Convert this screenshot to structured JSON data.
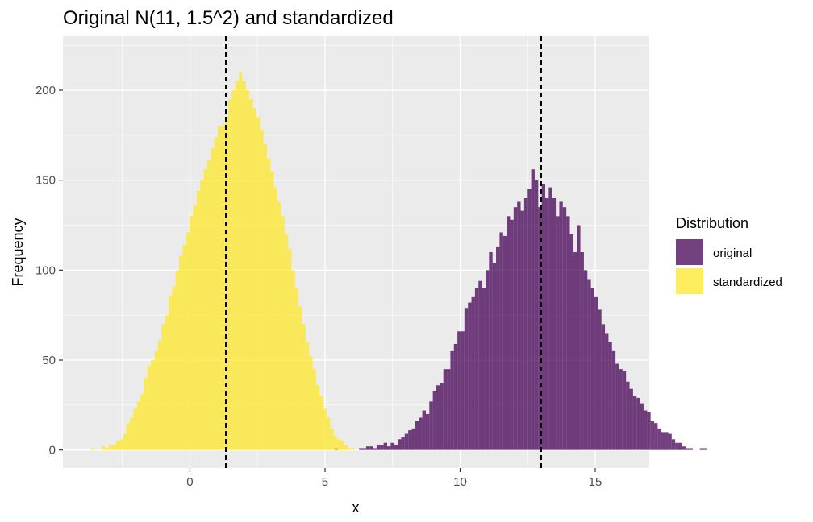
{
  "chart_data": {
    "type": "histogram",
    "title": "Original N(11, 1.5^2) and standardized",
    "xlabel": "x",
    "ylabel": "Frequency",
    "xlim": [
      -4.7,
      17.0
    ],
    "ylim": [
      -10,
      230
    ],
    "x_ticks": [
      0,
      5,
      10,
      15
    ],
    "y_ticks": [
      0,
      50,
      100,
      150,
      200
    ],
    "grid": true,
    "bin_width": 0.13,
    "vlines": [
      1.33,
      13.0
    ],
    "vline_style": "dashed",
    "legend": {
      "title": "Distribution",
      "position": "right"
    },
    "series": [
      {
        "name": "original",
        "color": "#440154",
        "opacity": 0.75,
        "start": 5.35,
        "counts": [
          1,
          0,
          0,
          0,
          0,
          0,
          0,
          1,
          1,
          2,
          2,
          1,
          3,
          3,
          4,
          2,
          4,
          3,
          6,
          7,
          9,
          11,
          12,
          16,
          18,
          22,
          20,
          27,
          33,
          36,
          37,
          45,
          45,
          55,
          59,
          66,
          66,
          79,
          82,
          85,
          90,
          94,
          90,
          100,
          110,
          104,
          113,
          121,
          119,
          130,
          128,
          135,
          138,
          133,
          140,
          145,
          156,
          150,
          135,
          148,
          140,
          146,
          140,
          130,
          138,
          135,
          130,
          120,
          110,
          125,
          110,
          100,
          95,
          90,
          85,
          78,
          70,
          65,
          60,
          55,
          48,
          45,
          44,
          38,
          34,
          30,
          29,
          26,
          22,
          21,
          16,
          15,
          12,
          10,
          10,
          9,
          6,
          4,
          4,
          2,
          1,
          1,
          0,
          0,
          1,
          1
        ]
      },
      {
        "name": "standardized",
        "color": "#fde725",
        "opacity": 0.75,
        "start": -3.65,
        "counts": [
          1,
          0,
          0,
          2,
          1,
          3,
          3,
          5,
          6,
          9,
          15,
          18,
          23,
          27,
          31,
          40,
          47,
          50,
          55,
          61,
          70,
          75,
          86,
          91,
          100,
          108,
          114,
          121,
          130,
          136,
          144,
          150,
          156,
          161,
          168,
          174,
          180,
          180,
          185,
          195,
          200,
          205,
          210,
          205,
          200,
          195,
          190,
          185,
          178,
          170,
          162,
          155,
          146,
          138,
          130,
          120,
          112,
          100,
          90,
          80,
          70,
          60,
          52,
          45,
          36,
          30,
          23,
          18,
          12,
          8,
          6,
          5,
          3,
          1,
          1
        ]
      }
    ]
  }
}
